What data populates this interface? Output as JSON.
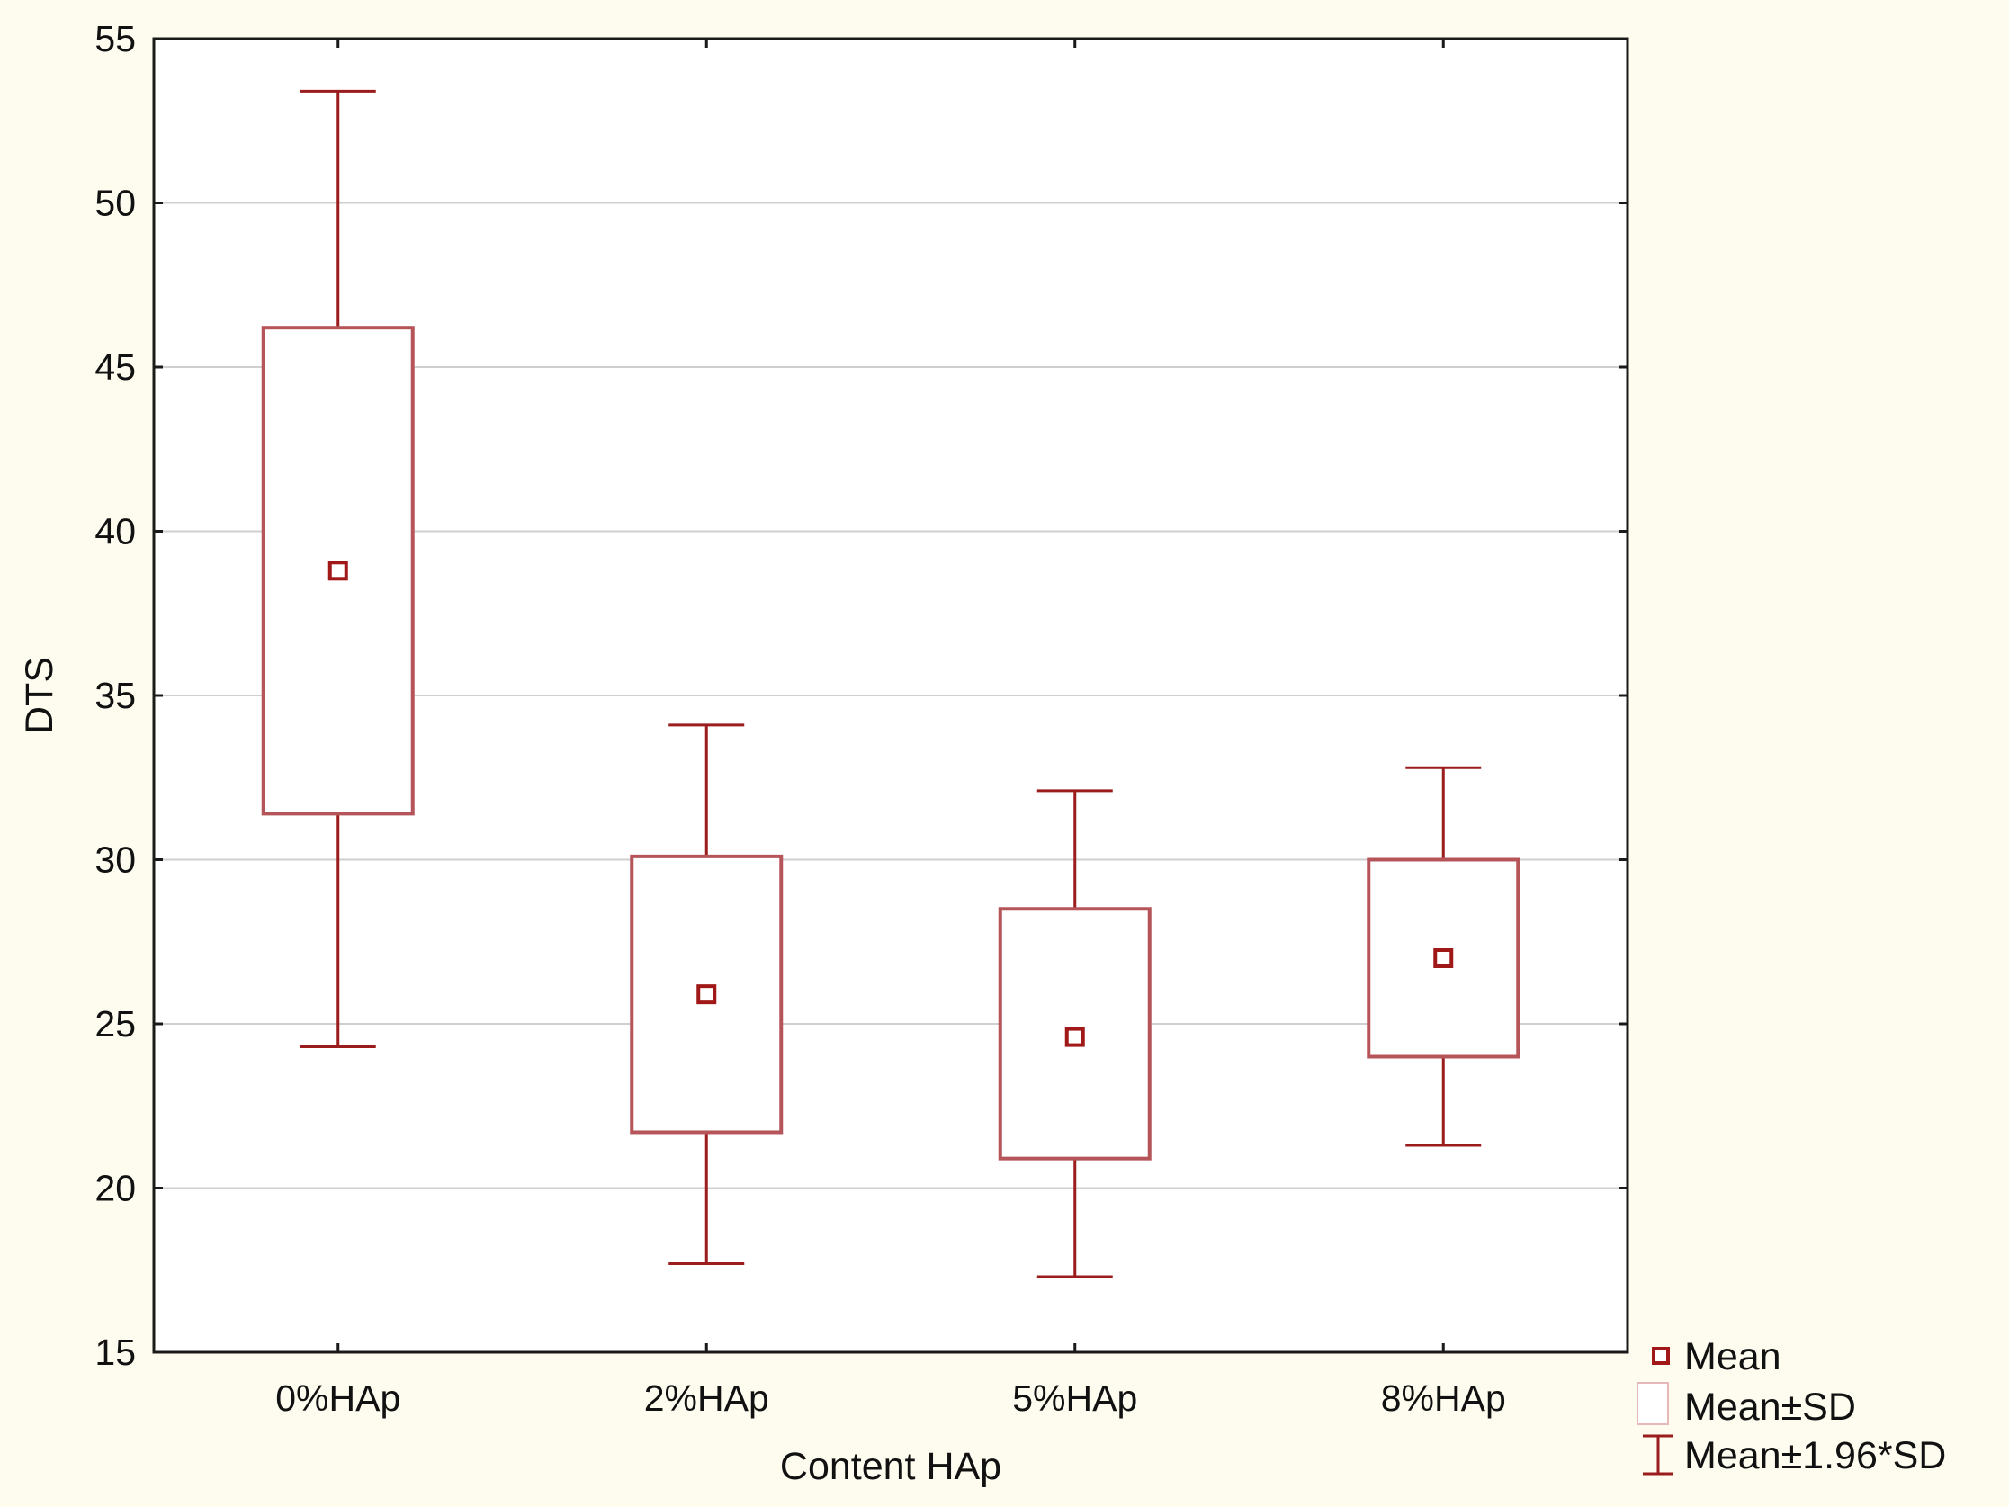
{
  "chart_data": {
    "type": "box",
    "title": "",
    "xlabel": "Content HAp",
    "ylabel": "DTS",
    "ylim": [
      15,
      55
    ],
    "yticks": [
      15,
      20,
      25,
      30,
      35,
      40,
      45,
      50,
      55
    ],
    "grid": true,
    "categories": [
      "0%HAp",
      "2%HAp",
      "5%HAp",
      "8%HAp"
    ],
    "series": [
      {
        "name": "Mean",
        "values": [
          38.8,
          25.9,
          24.6,
          27.0
        ]
      },
      {
        "name": "Mean-SD",
        "values": [
          31.4,
          21.7,
          20.9,
          24.0
        ]
      },
      {
        "name": "Mean+SD",
        "values": [
          46.2,
          30.1,
          28.5,
          30.0
        ]
      },
      {
        "name": "Mean-1.96*SD",
        "values": [
          24.3,
          17.7,
          17.3,
          21.3
        ]
      },
      {
        "name": "Mean+1.96*SD",
        "values": [
          53.4,
          34.1,
          32.1,
          32.8
        ]
      }
    ],
    "legend": {
      "position": "bottom-right",
      "items": [
        "Mean",
        "Mean±SD",
        "Mean±1.96*SD"
      ]
    },
    "colors": {
      "whisker": "#9b1c1c",
      "box": "#b5555a",
      "mean_marker": "#a01818",
      "grid": "#cfcfcf",
      "plot_background": "#ffffff",
      "page_background": "#fdfcef"
    }
  }
}
